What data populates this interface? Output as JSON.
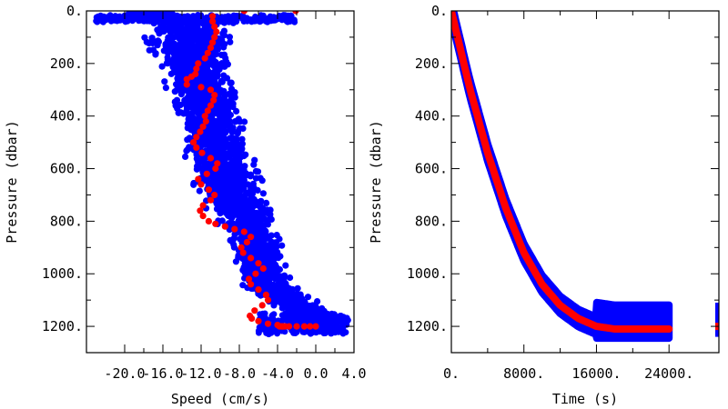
{
  "chart_data": [
    {
      "type": "scatter",
      "title": "",
      "xlabel": "Speed (cm/s)",
      "ylabel": "Pressure (dbar)",
      "xlim": [
        -24.0,
        4.0
      ],
      "ylim": [
        1300,
        0
      ],
      "x_ticks": [
        -20.0,
        -16.0,
        -12.0,
        -8.0,
        -4.0,
        0.0,
        4.0
      ],
      "x_tick_labels": [
        "-20.0",
        "-16.0",
        "-12.0",
        "-8.0",
        "-4.0",
        "0.0",
        "4.0"
      ],
      "y_ticks": [
        0,
        200,
        400,
        600,
        800,
        1000,
        1200
      ],
      "y_tick_labels": [
        "0.",
        "200.",
        "400.",
        "600.",
        "800.",
        "1000.",
        "1200."
      ],
      "series": [
        {
          "color": "#0000ff",
          "style": "dense-cloud",
          "center_pressure": [
            0,
            25,
            30,
            35,
            50,
            100,
            150,
            200,
            250,
            300,
            350,
            400,
            450,
            500,
            550,
            600,
            650,
            700,
            750,
            800,
            850,
            900,
            950,
            1000,
            1050,
            1100,
            1150,
            1200,
            1220
          ],
          "speed_min": [
            -20,
            -23,
            -23,
            -23,
            -20,
            -19.5,
            -18.5,
            -17.5,
            -17,
            -16.5,
            -16,
            -15.5,
            -15,
            -15,
            -14.5,
            -14,
            -13.5,
            -13,
            -12,
            -11,
            -10,
            -9.5,
            -9,
            -8.5,
            -8,
            -6,
            -4,
            -2.5,
            -2
          ],
          "speed_max": [
            -14,
            -12,
            -3,
            3,
            -7,
            -7.5,
            -7.8,
            -8,
            -7.8,
            -7.5,
            -7.2,
            -7,
            -6.8,
            -6.5,
            -6,
            -5.5,
            -5,
            -4.5,
            -4,
            -3.5,
            -3,
            -2.8,
            -2.5,
            -2.2,
            -1.5,
            0.5,
            3,
            3.5,
            0.5
          ]
        },
        {
          "color": "#ff0000",
          "style": "points",
          "speed": [
            -7.5,
            -2.1,
            -10.8,
            -10.8,
            -10.6,
            -10.4,
            -10.6,
            -10.8,
            -11.0,
            -11.3,
            -11.6,
            -12.3,
            -12.5,
            -12.6,
            -13.0,
            -13.5,
            -13.5,
            -12.0,
            -11.0,
            -10.6,
            -10.7,
            -11.0,
            -11.3,
            -11.6,
            -11.5,
            -11.8,
            -12.1,
            -12.5,
            -12.8,
            -12.5,
            -11.9,
            -11.0,
            -10.3,
            -10.5,
            -11.4,
            -12.3,
            -12.0,
            -11.2,
            -10.6,
            -11.0,
            -11.8,
            -12.1,
            -11.8,
            -11.2,
            -10.5,
            -9.5,
            -8.5,
            -7.5,
            -6.8,
            -7.2,
            -7.8,
            -7.6,
            -6.8,
            -6.0,
            -5.5,
            -6.3,
            -7.0,
            -6.8,
            -6.0,
            -5.2,
            -5.0,
            -5.6,
            -6.4,
            -6.9,
            -6.7,
            -6.0,
            -5.0,
            -4.0,
            -3.4,
            -3.2,
            -3.6,
            -3.8,
            -3.5,
            -2.8,
            -2.0,
            -1.2,
            -0.6,
            0.0
          ],
          "pressure": [
            0,
            0,
            20,
            40,
            60,
            80,
            100,
            120,
            140,
            160,
            180,
            200,
            220,
            240,
            250,
            260,
            280,
            290,
            300,
            320,
            340,
            360,
            380,
            400,
            420,
            440,
            460,
            480,
            500,
            520,
            540,
            560,
            580,
            600,
            620,
            640,
            660,
            680,
            700,
            720,
            740,
            760,
            780,
            800,
            810,
            820,
            830,
            840,
            860,
            880,
            900,
            920,
            940,
            960,
            980,
            1000,
            1020,
            1040,
            1060,
            1080,
            1100,
            1120,
            1140,
            1160,
            1170,
            1180,
            1190,
            1195,
            1200,
            1200,
            1200,
            1200,
            1200,
            1200,
            1200,
            1200,
            1200,
            1200
          ]
        }
      ]
    },
    {
      "type": "scatter",
      "title": "",
      "xlabel": "Time (s)",
      "ylabel": "Pressure (dbar)",
      "xlim": [
        0,
        29500
      ],
      "ylim": [
        1300,
        0
      ],
      "x_ticks": [
        0,
        8000,
        16000,
        24000
      ],
      "x_tick_labels": [
        "0.",
        "8000.",
        "16000.",
        "24000."
      ],
      "y_ticks": [
        0,
        200,
        400,
        600,
        800,
        1000,
        1200
      ],
      "y_tick_labels": [
        "0.",
        "200.",
        "400.",
        "600.",
        "800.",
        "1000.",
        "1200."
      ],
      "series": [
        {
          "color": "#0000ff",
          "style": "band",
          "time": [
            0,
            2000,
            4000,
            6000,
            8000,
            10000,
            12000,
            14000,
            16000,
            17000,
            18000,
            20000,
            22000,
            24000
          ],
          "pressure": [
            0,
            290,
            540,
            750,
            920,
            1040,
            1120,
            1170,
            1200,
            1205,
            1210,
            1210,
            1210,
            1210
          ],
          "half_width": 35
        },
        {
          "color": "#ff0000",
          "style": "line",
          "time": [
            0,
            2000,
            4000,
            6000,
            8000,
            10000,
            12000,
            14000,
            16000,
            17000,
            18000,
            20000,
            22000,
            24000
          ],
          "pressure": [
            0,
            290,
            540,
            750,
            920,
            1040,
            1120,
            1170,
            1200,
            1205,
            1210,
            1210,
            1210,
            1210
          ]
        },
        {
          "color": "#0000ff",
          "style": "fragment",
          "time": [
            29500
          ],
          "pressure_range": [
            1110,
            1240
          ]
        },
        {
          "color": "#ff0000",
          "style": "fragment",
          "time": [
            29500
          ],
          "pressure": [
            1200
          ]
        }
      ]
    }
  ]
}
